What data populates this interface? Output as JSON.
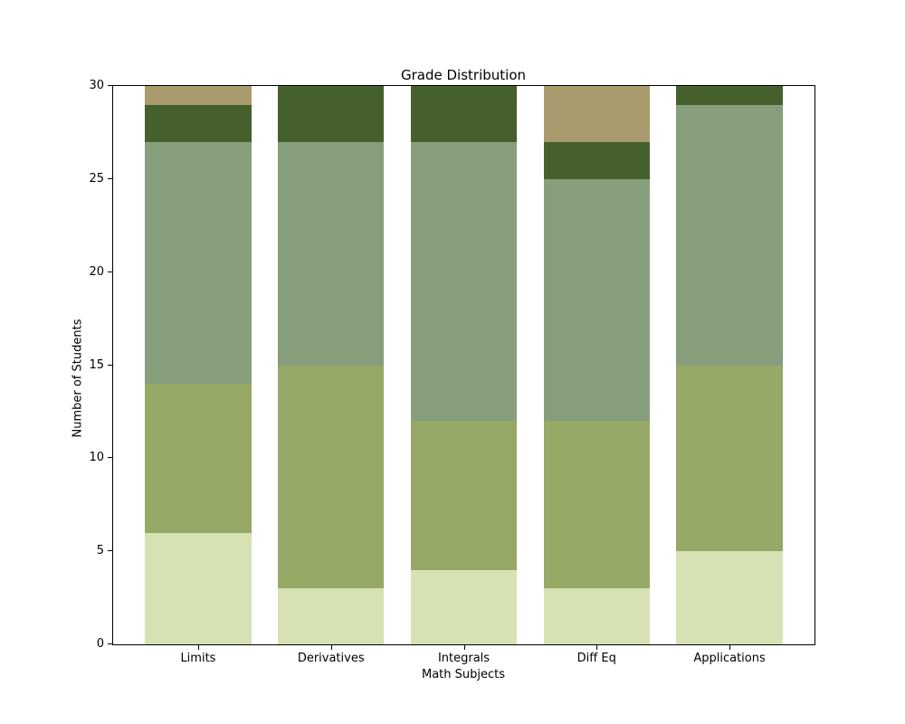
{
  "chart_data": {
    "type": "bar",
    "stacked": true,
    "title": "Grade Distribution",
    "xlabel": "Math Subjects",
    "ylabel": "Number of Students",
    "categories": [
      "Limits",
      "Derivatives",
      "Integrals",
      "Diff Eq",
      "Applications"
    ],
    "series": [
      {
        "name": "band-1-light-green",
        "color": "#d6e2b4",
        "values": [
          6,
          3,
          4,
          3,
          5
        ]
      },
      {
        "name": "band-2-olive-green",
        "color": "#96a966",
        "values": [
          8,
          12,
          8,
          9,
          10
        ]
      },
      {
        "name": "band-3-sage-green",
        "color": "#869e7c",
        "values": [
          13,
          12,
          15,
          13,
          14
        ]
      },
      {
        "name": "band-4-dark-green",
        "color": "#45602c",
        "values": [
          2,
          3,
          3,
          2,
          1
        ]
      },
      {
        "name": "band-5-tan",
        "color": "#a99b6d",
        "values": [
          1,
          0,
          0,
          3,
          0
        ]
      }
    ],
    "stack_order": "bottom-to-top",
    "ylim": [
      0,
      30
    ],
    "yticks": [
      0,
      5,
      10,
      15,
      20,
      25,
      30
    ],
    "grid": false,
    "legend": "none",
    "bar_totals": [
      30,
      30,
      30,
      30,
      30
    ]
  },
  "colors": {
    "background": "#ffffff",
    "axis": "#000000",
    "text": "#000000"
  }
}
